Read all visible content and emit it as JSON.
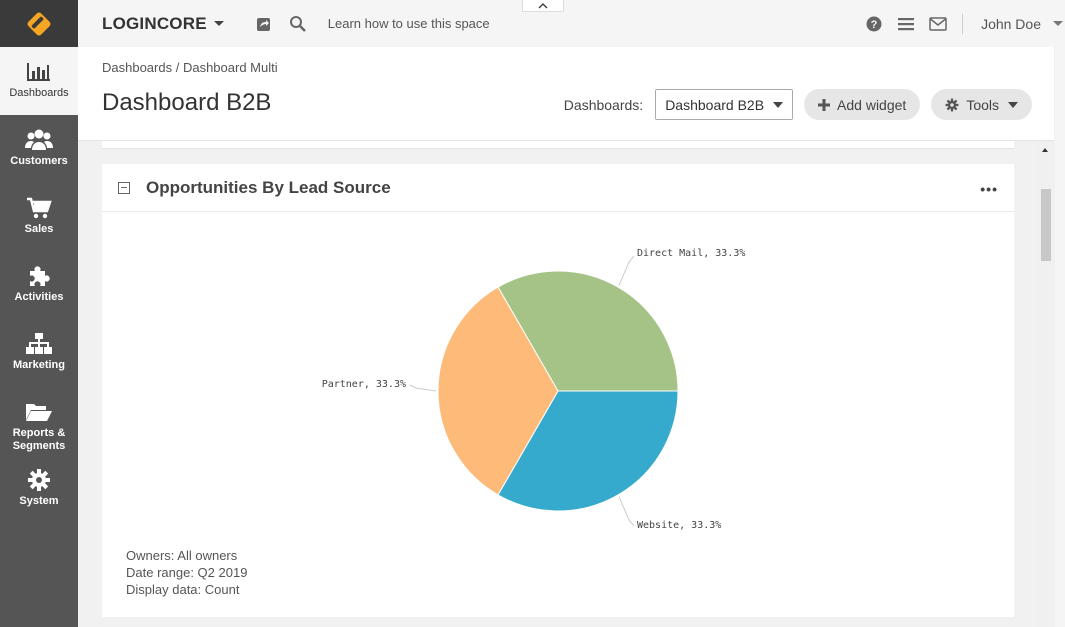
{
  "topbar": {
    "app_name": "LOGINCORE",
    "learn_text": "Learn how to use this space",
    "user_name": "John Doe"
  },
  "sidebar": {
    "items": [
      {
        "label": "Dashboards",
        "icon": "bar-chart-icon"
      },
      {
        "label": "Customers",
        "icon": "users-icon"
      },
      {
        "label": "Sales",
        "icon": "shopping-cart-icon"
      },
      {
        "label": "Activities",
        "icon": "puzzle-icon"
      },
      {
        "label": "Marketing",
        "icon": "sitemap-icon"
      },
      {
        "label": "Reports &",
        "label2": "Segments",
        "icon": "folder-open-icon"
      },
      {
        "label": "System",
        "icon": "gear-icon"
      }
    ]
  },
  "header": {
    "breadcrumb_1": "Dashboards",
    "breadcrumb_sep": " / ",
    "breadcrumb_2": "Dashboard Multi",
    "title": "Dashboard B2B",
    "dashboards_label": "Dashboards:",
    "dashboard_select": "Dashboard B2B",
    "add_widget": "Add widget",
    "tools": "Tools"
  },
  "widget": {
    "title": "Opportunities By Lead Source",
    "menu": "•••",
    "filters": {
      "owners": "Owners: All owners",
      "date_range": "Date range: Q2 2019",
      "display": "Display data: Count"
    }
  },
  "chart_data": {
    "type": "pie",
    "slices": [
      {
        "label": "Direct Mail, 33.3%",
        "value": 33.3,
        "color": "#a5c386"
      },
      {
        "label": "Website, 33.3%",
        "value": 33.3,
        "color": "#35aacc"
      },
      {
        "label": "Partner, 33.3%",
        "value": 33.3,
        "color": "#fdba78"
      }
    ]
  },
  "colors": {
    "sidebar_bg": "#555555",
    "logo_accent": "#f5a623"
  }
}
